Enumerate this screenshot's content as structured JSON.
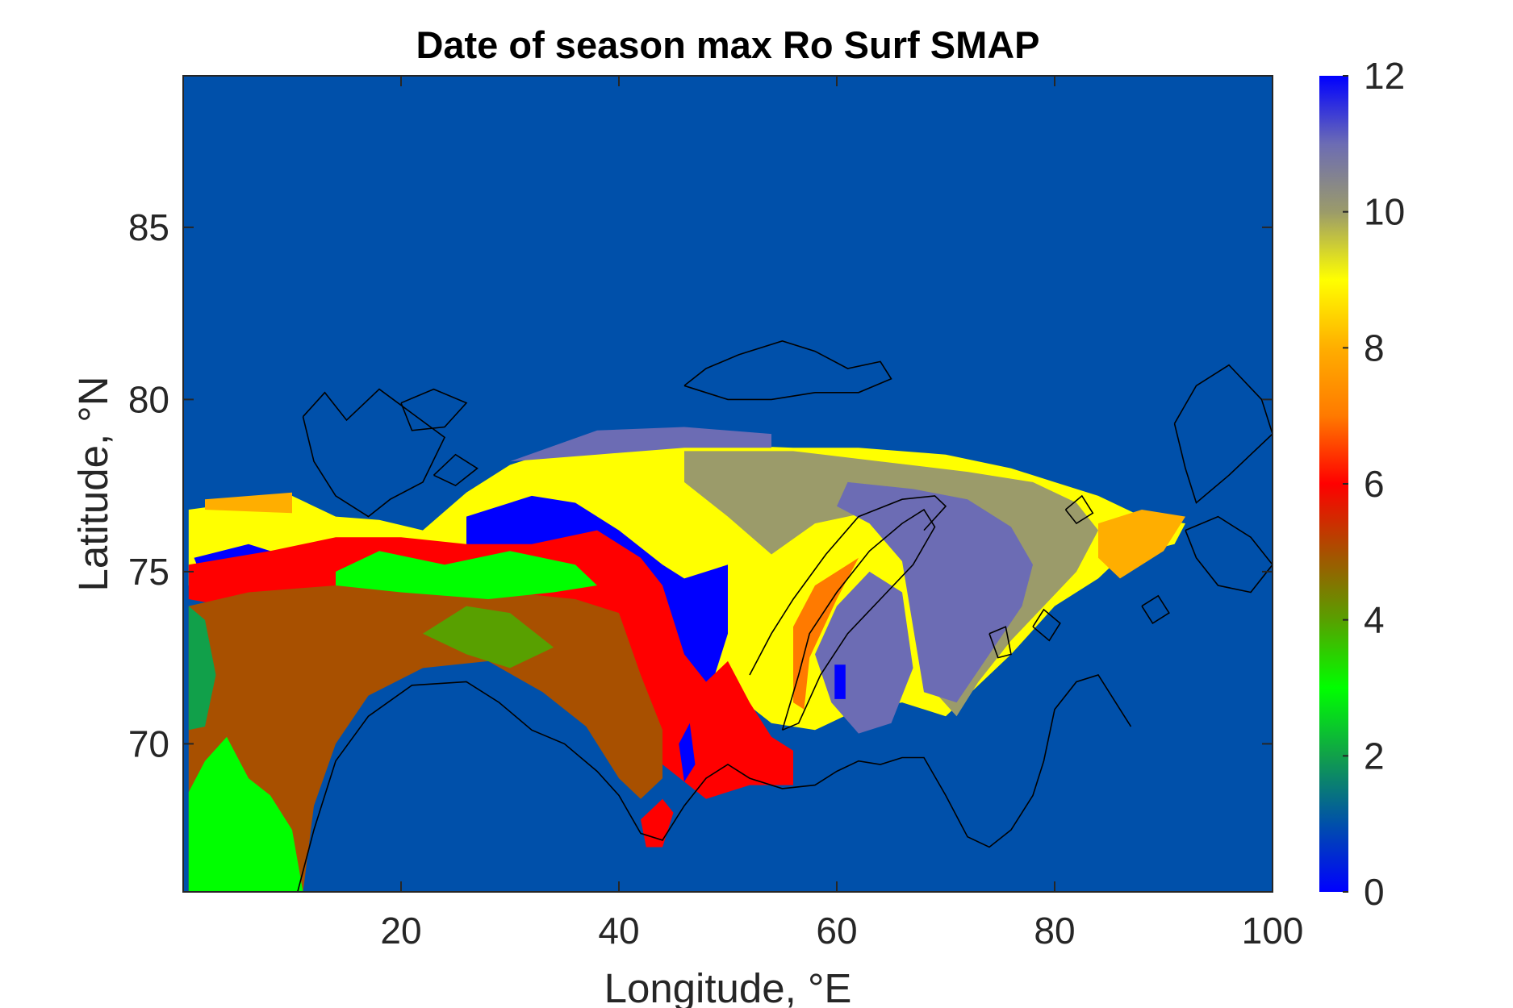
{
  "chart_data": {
    "type": "heatmap",
    "title": "Date of season max Ro Surf SMAP",
    "xlabel": "Longitude, °E",
    "ylabel": "Latitude, °N",
    "xlim": [
      0,
      100
    ],
    "ylim": [
      65.7,
      89.4
    ],
    "xticks": [
      20,
      40,
      60,
      80,
      100
    ],
    "yticks": [
      70,
      75,
      80,
      85
    ],
    "grid": false,
    "background_value": 1,
    "colorbar": {
      "min": 0,
      "max": 12,
      "ticks": [
        0,
        2,
        4,
        6,
        8,
        10,
        12
      ],
      "stops": [
        {
          "value": 0,
          "color": "#0000ff"
        },
        {
          "value": 1,
          "color": "#0050aa"
        },
        {
          "value": 2,
          "color": "#11a04a"
        },
        {
          "value": 3,
          "color": "#00ff00"
        },
        {
          "value": 4,
          "color": "#58a000"
        },
        {
          "value": 5,
          "color": "#a85000"
        },
        {
          "value": 6,
          "color": "#ff0000"
        },
        {
          "value": 7,
          "color": "#ff7a00"
        },
        {
          "value": 8,
          "color": "#ffae00"
        },
        {
          "value": 9,
          "color": "#ffff00"
        },
        {
          "value": 10,
          "color": "#9b9b6a"
        },
        {
          "value": 11,
          "color": "#6c6cb4"
        },
        {
          "value": 12,
          "color": "#0000ff"
        }
      ]
    },
    "regions": [
      {
        "value": 9,
        "polygon": [
          [
            0.5,
            76.8
          ],
          [
            10,
            77.2
          ],
          [
            14,
            76.6
          ],
          [
            18,
            76.5
          ],
          [
            22,
            76.2
          ],
          [
            26,
            77.3
          ],
          [
            30,
            78.1
          ],
          [
            36,
            78.7
          ],
          [
            42,
            78.8
          ],
          [
            48,
            78.7
          ],
          [
            56,
            78.6
          ],
          [
            62,
            78.6
          ],
          [
            70,
            78.4
          ],
          [
            76,
            78.0
          ],
          [
            80,
            77.6
          ],
          [
            84,
            77.2
          ],
          [
            88,
            76.6
          ],
          [
            92,
            76.4
          ],
          [
            91,
            75.8
          ],
          [
            86,
            75.4
          ],
          [
            84,
            74.8
          ],
          [
            80,
            74.0
          ],
          [
            76,
            72.6
          ],
          [
            72,
            71.4
          ],
          [
            70,
            70.8
          ],
          [
            66,
            71.2
          ],
          [
            62,
            71.0
          ],
          [
            58,
            70.4
          ],
          [
            54,
            70.6
          ],
          [
            50,
            71.6
          ],
          [
            46,
            73.0
          ],
          [
            40,
            74.4
          ],
          [
            30,
            75.2
          ],
          [
            20,
            75.4
          ],
          [
            10,
            75.2
          ],
          [
            5,
            75.0
          ],
          [
            0.5,
            74.6
          ]
        ]
      },
      {
        "value": 8,
        "polygon": [
          [
            2,
            77.1
          ],
          [
            10,
            77.3
          ],
          [
            10,
            76.7
          ],
          [
            2,
            76.8
          ]
        ]
      },
      {
        "value": 11,
        "polygon": [
          [
            30,
            78.2
          ],
          [
            38,
            79.1
          ],
          [
            46,
            79.2
          ],
          [
            54,
            79.0
          ],
          [
            54,
            78.6
          ],
          [
            46,
            78.6
          ],
          [
            38,
            78.4
          ]
        ]
      },
      {
        "value": 10,
        "polygon": [
          [
            46,
            78.5
          ],
          [
            56,
            78.5
          ],
          [
            64,
            78.2
          ],
          [
            72,
            77.9
          ],
          [
            78,
            77.6
          ],
          [
            82,
            77.0
          ],
          [
            84,
            76.2
          ],
          [
            82,
            75.0
          ],
          [
            79,
            74.0
          ],
          [
            76,
            73.0
          ],
          [
            73,
            71.8
          ],
          [
            71,
            70.8
          ],
          [
            69,
            71.5
          ],
          [
            68,
            73.5
          ],
          [
            67,
            75.5
          ],
          [
            64,
            76.8
          ],
          [
            58,
            76.4
          ],
          [
            54,
            75.5
          ],
          [
            50,
            76.6
          ],
          [
            46,
            77.6
          ]
        ]
      },
      {
        "value": 11,
        "polygon": [
          [
            61,
            77.6
          ],
          [
            67,
            77.4
          ],
          [
            72,
            77.1
          ],
          [
            76,
            76.3
          ],
          [
            78,
            75.2
          ],
          [
            77,
            74.0
          ],
          [
            74,
            72.6
          ],
          [
            71,
            71.2
          ],
          [
            68,
            71.5
          ],
          [
            67,
            73.4
          ],
          [
            66,
            75.3
          ],
          [
            63,
            76.4
          ],
          [
            60,
            76.9
          ]
        ]
      },
      {
        "value": 11,
        "polygon": [
          [
            60,
            74.0
          ],
          [
            63,
            75.0
          ],
          [
            66,
            74.4
          ],
          [
            67,
            72.2
          ],
          [
            65,
            70.6
          ],
          [
            62,
            70.3
          ],
          [
            59.5,
            71.2
          ],
          [
            58,
            72.6
          ]
        ]
      },
      {
        "value": 8,
        "polygon": [
          [
            84,
            76.4
          ],
          [
            88,
            76.8
          ],
          [
            92,
            76.6
          ],
          [
            90,
            75.6
          ],
          [
            86,
            74.8
          ],
          [
            84,
            75.4
          ]
        ]
      },
      {
        "value": 7,
        "polygon": [
          [
            56,
            73.4
          ],
          [
            58,
            74.6
          ],
          [
            62,
            75.4
          ],
          [
            60,
            74.2
          ],
          [
            57.5,
            72.5
          ],
          [
            57,
            71.0
          ],
          [
            56,
            71.2
          ]
        ]
      },
      {
        "value": 0,
        "polygon": [
          [
            26,
            76.6
          ],
          [
            32,
            77.2
          ],
          [
            36,
            77.0
          ],
          [
            40,
            76.2
          ],
          [
            44,
            75.2
          ],
          [
            46,
            74.8
          ],
          [
            50,
            75.2
          ],
          [
            50,
            73.2
          ],
          [
            48,
            71.2
          ],
          [
            46,
            69.6
          ],
          [
            44,
            70.0
          ],
          [
            42,
            72.6
          ],
          [
            38,
            74.8
          ],
          [
            32,
            75.6
          ],
          [
            26,
            75.8
          ]
        ]
      },
      {
        "value": 0,
        "polygon": [
          [
            1,
            75.4
          ],
          [
            6,
            75.8
          ],
          [
            10,
            75.4
          ],
          [
            8,
            74.8
          ],
          [
            2,
            74.6
          ]
        ]
      },
      {
        "value": 6,
        "polygon": [
          [
            0.5,
            75.2
          ],
          [
            8,
            75.6
          ],
          [
            14,
            76.0
          ],
          [
            20,
            76.0
          ],
          [
            26,
            75.8
          ],
          [
            32,
            75.8
          ],
          [
            38,
            76.2
          ],
          [
            42,
            75.4
          ],
          [
            44,
            74.6
          ],
          [
            46,
            72.6
          ],
          [
            48,
            71.8
          ],
          [
            50,
            72.4
          ],
          [
            52,
            71.2
          ],
          [
            54,
            70.2
          ],
          [
            56,
            69.8
          ],
          [
            56,
            68.8
          ],
          [
            52,
            68.8
          ],
          [
            48,
            68.4
          ],
          [
            44,
            69.4
          ],
          [
            42,
            68.8
          ],
          [
            40,
            71.2
          ],
          [
            34,
            73.4
          ],
          [
            26,
            74.0
          ],
          [
            18,
            74.4
          ],
          [
            10,
            74.2
          ],
          [
            4,
            74.0
          ],
          [
            0.5,
            74.2
          ]
        ]
      },
      {
        "value": 6,
        "polygon": [
          [
            42,
            67.8
          ],
          [
            44,
            68.4
          ],
          [
            45,
            68.0
          ],
          [
            44,
            67.0
          ],
          [
            42.5,
            67.0
          ]
        ]
      },
      {
        "value": 5,
        "polygon": [
          [
            0.5,
            74.0
          ],
          [
            6,
            74.4
          ],
          [
            14,
            74.6
          ],
          [
            22,
            74.6
          ],
          [
            30,
            74.4
          ],
          [
            36,
            74.2
          ],
          [
            40,
            73.8
          ],
          [
            42,
            72.0
          ],
          [
            44,
            70.4
          ],
          [
            44,
            69.0
          ],
          [
            42,
            68.4
          ],
          [
            40,
            69.0
          ],
          [
            37,
            70.5
          ],
          [
            33,
            71.5
          ],
          [
            28,
            72.4
          ],
          [
            22,
            72.2
          ],
          [
            17,
            71.4
          ],
          [
            14,
            70.0
          ],
          [
            12,
            68.2
          ],
          [
            11,
            65.7
          ],
          [
            0.5,
            65.7
          ]
        ]
      },
      {
        "value": 3,
        "polygon": [
          [
            14,
            75.0
          ],
          [
            18,
            75.6
          ],
          [
            24,
            75.2
          ],
          [
            30,
            75.6
          ],
          [
            36,
            75.2
          ],
          [
            38,
            74.6
          ],
          [
            34,
            74.4
          ],
          [
            28,
            74.2
          ],
          [
            20,
            74.4
          ],
          [
            14,
            74.6
          ]
        ]
      },
      {
        "value": 4,
        "polygon": [
          [
            22,
            73.2
          ],
          [
            26,
            74.0
          ],
          [
            30,
            73.8
          ],
          [
            34,
            72.8
          ],
          [
            30,
            72.2
          ],
          [
            26,
            72.6
          ]
        ]
      },
      {
        "value": 3,
        "polygon": [
          [
            0.5,
            68.6
          ],
          [
            2,
            69.5
          ],
          [
            4,
            70.2
          ],
          [
            6,
            69.0
          ],
          [
            8,
            68.5
          ],
          [
            10,
            67.5
          ],
          [
            11,
            65.7
          ],
          [
            0.5,
            65.7
          ]
        ]
      },
      {
        "value": 2,
        "polygon": [
          [
            0.5,
            74.0
          ],
          [
            2,
            73.6
          ],
          [
            3,
            72.0
          ],
          [
            2,
            70.5
          ],
          [
            0.5,
            70.4
          ]
        ]
      },
      {
        "value": 0,
        "polygon": [
          [
            45.5,
            70.0
          ],
          [
            46.5,
            70.6
          ],
          [
            47,
            69.4
          ],
          [
            46,
            68.9
          ]
        ]
      },
      {
        "value": 0,
        "polygon": [
          [
            59.8,
            72.3
          ],
          [
            60.8,
            72.3
          ],
          [
            60.8,
            71.3
          ],
          [
            59.8,
            71.3
          ]
        ]
      }
    ]
  }
}
